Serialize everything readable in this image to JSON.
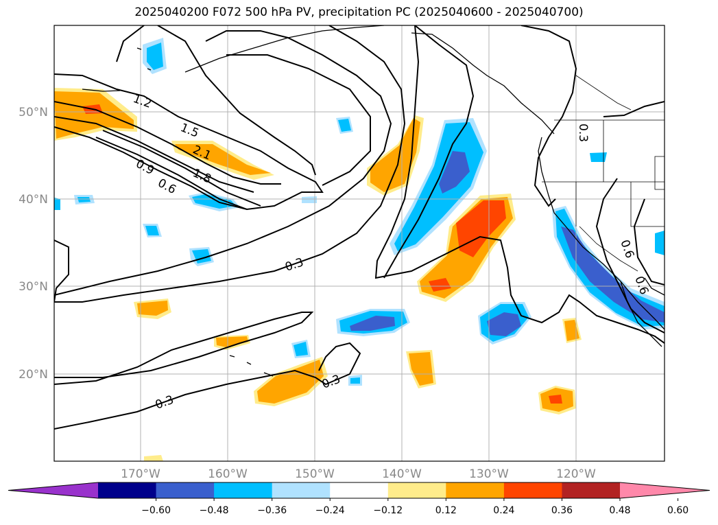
{
  "title": "2025040200 F072 500 hPa PV, precipitation PC (2025040600 - 2025040700)",
  "lat_labels": [
    "50°N",
    "40°N",
    "30°N",
    "20°N"
  ],
  "lon_labels": [
    "170°W",
    "160°W",
    "150°W",
    "140°W",
    "130°W",
    "120°W"
  ],
  "contour_labels": [
    "1.2",
    "1.5",
    "2.1",
    "1.8",
    "0.9",
    "0.6",
    "0.3",
    "0.3",
    "0.3",
    "0.3",
    "0.6",
    "0.6"
  ],
  "colorbar": {
    "colors": [
      "#9932cc",
      "#00008b",
      "#3a5fcd",
      "#00bfff",
      "#b0e2ff",
      "#ffffff",
      "#ffec8b",
      "#ffa500",
      "#ff4500",
      "#b22222",
      "#ff88aa"
    ],
    "tick_labels": [
      "−0.60",
      "−0.48",
      "−0.36",
      "−0.24",
      "−0.12",
      "0.12",
      "0.24",
      "0.36",
      "0.48",
      "0.60"
    ]
  },
  "colors": {
    "orange": "#ffa500",
    "yellow": "#ffec8b",
    "red": "#ff4500",
    "cyan": "#00bfff",
    "lightblue": "#b0e2ff",
    "blue": "#3a5fcd"
  }
}
